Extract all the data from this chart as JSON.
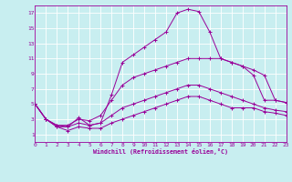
{
  "xlabel": "Windchill (Refroidissement éolien,°C)",
  "bg_color": "#c8eef0",
  "grid_color": "#aaaaaa",
  "line_color": "#990099",
  "xmin": 0,
  "xmax": 23,
  "ymin": 0,
  "ymax": 18,
  "yticks": [
    1,
    3,
    5,
    7,
    9,
    11,
    13,
    15,
    17
  ],
  "xticks": [
    0,
    1,
    2,
    3,
    4,
    5,
    6,
    7,
    8,
    9,
    10,
    11,
    12,
    13,
    14,
    15,
    16,
    17,
    18,
    19,
    20,
    21,
    22,
    23
  ],
  "lines": [
    [
      5,
      3,
      2.2,
      2,
      3.2,
      2.2,
      2.5,
      6.2,
      10.5,
      11.5,
      12.5,
      13.5,
      14.5,
      17.0,
      17.5,
      17.2,
      14.5,
      11.0,
      10.5,
      10.0,
      8.8,
      5.5,
      5.5,
      5.2
    ],
    [
      5,
      3,
      2.2,
      2.2,
      3.0,
      2.8,
      3.5,
      5.5,
      7.5,
      8.5,
      9.0,
      9.5,
      10.0,
      10.5,
      11.0,
      11.0,
      11.0,
      11.0,
      10.5,
      10.0,
      9.5,
      8.8,
      5.5,
      5.2
    ],
    [
      5,
      3,
      2.0,
      2.0,
      2.5,
      2.2,
      2.5,
      3.5,
      4.5,
      5.0,
      5.5,
      6.0,
      6.5,
      7.0,
      7.5,
      7.5,
      7.0,
      6.5,
      6.0,
      5.5,
      5.0,
      4.5,
      4.2,
      4.0
    ],
    [
      5,
      3,
      2.0,
      1.5,
      2.0,
      1.8,
      1.8,
      2.5,
      3.0,
      3.5,
      4.0,
      4.5,
      5.0,
      5.5,
      6.0,
      6.0,
      5.5,
      5.0,
      4.5,
      4.5,
      4.5,
      4.0,
      3.8,
      3.5
    ]
  ]
}
